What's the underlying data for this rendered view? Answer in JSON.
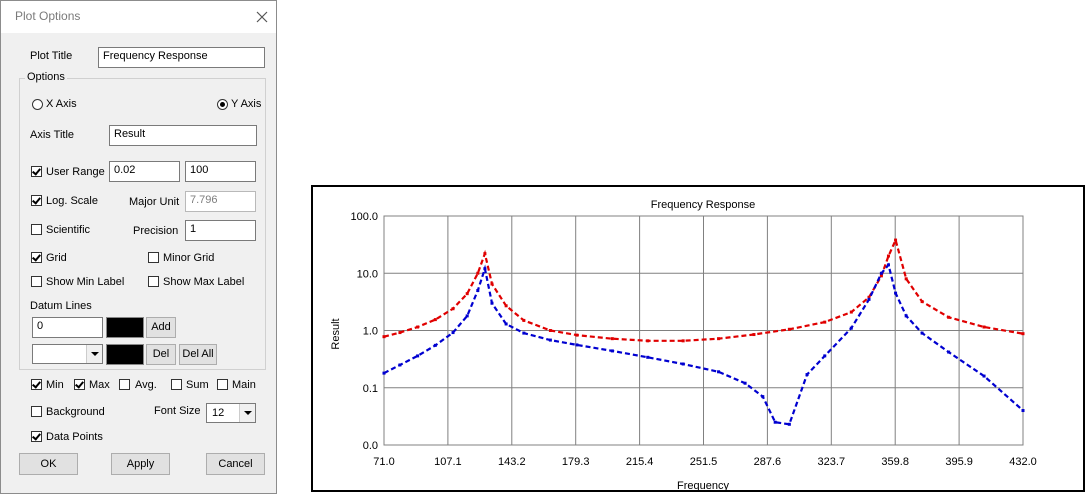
{
  "dialog": {
    "title": "Plot Options",
    "plot_title_label": "Plot Title",
    "plot_title_value": "Frequency Response",
    "options_group_label": "Options",
    "x_axis_label": "X Axis",
    "y_axis_label": "Y Axis",
    "selected_axis": "Y Axis",
    "axis_title_label": "Axis Title",
    "axis_title_value": "Result",
    "user_range_label": "User Range",
    "user_range_checked": true,
    "range_min": "0.02",
    "range_max": "100",
    "log_scale_label": "Log. Scale",
    "log_scale_checked": true,
    "major_unit_label": "Major Unit",
    "major_unit_value": "7.796",
    "scientific_label": "Scientific",
    "scientific_checked": false,
    "precision_label": "Precision",
    "precision_value": "1",
    "grid_label": "Grid",
    "grid_checked": true,
    "minor_grid_label": "Minor Grid",
    "minor_grid_checked": false,
    "show_min_label": "Show Min Label",
    "show_min_checked": false,
    "show_max_label": "Show Max Label",
    "show_max_checked": false,
    "datum_lines_label": "Datum Lines",
    "datum_value": "0",
    "datum_color": "#000000",
    "add_button": "Add",
    "del_button": "Del",
    "del_all_button": "Del All",
    "min_label": "Min",
    "min_checked": true,
    "max_label": "Max",
    "max_checked": true,
    "avg_label": "Avg.",
    "avg_checked": false,
    "sum_label": "Sum",
    "sum_checked": false,
    "main_label": "Main",
    "main_checked": false,
    "background_label": "Background",
    "background_checked": false,
    "font_size_label": "Font Size",
    "font_size_value": "12",
    "data_points_label": "Data Points",
    "data_points_checked": true,
    "ok_button": "OK",
    "apply_button": "Apply",
    "cancel_button": "Cancel"
  },
  "chart_data": {
    "type": "line",
    "title": "Frequency Response",
    "xlabel": "Frequency",
    "ylabel": "Result",
    "xlim": [
      71.0,
      432.0
    ],
    "x_ticks": [
      "71.0",
      "107.1",
      "143.2",
      "179.3",
      "215.4",
      "251.5",
      "287.6",
      "323.7",
      "359.8",
      "395.9",
      "432.0"
    ],
    "y_scale": "log",
    "y_ticks": [
      "0.0",
      "0.1",
      "1.0",
      "10.0",
      "100.0"
    ],
    "grid": true,
    "line_style": "dashed",
    "series": [
      {
        "color": "#e00000",
        "x": [
          71,
          80,
          90,
          100,
          110,
          118,
          124,
          128,
          132,
          140,
          150,
          165,
          180,
          200,
          220,
          240,
          260,
          280,
          300,
          320,
          335,
          345,
          352,
          356,
          360,
          366,
          375,
          390,
          410,
          432
        ],
        "y": [
          0.78,
          0.92,
          1.15,
          1.55,
          2.4,
          4.4,
          10,
          22,
          6.5,
          2.7,
          1.5,
          1.0,
          0.83,
          0.72,
          0.66,
          0.66,
          0.72,
          0.85,
          1.05,
          1.4,
          2.1,
          3.8,
          9,
          20,
          38,
          8,
          3.2,
          1.7,
          1.15,
          0.88
        ]
      },
      {
        "color": "#0000d0",
        "x": [
          71,
          80,
          90,
          100,
          110,
          118,
          124,
          128,
          132,
          140,
          150,
          165,
          180,
          200,
          220,
          240,
          260,
          275,
          285,
          292,
          300,
          310,
          320,
          335,
          345,
          352,
          356,
          360,
          366,
          375,
          390,
          410,
          432
        ],
        "y": [
          0.18,
          0.25,
          0.36,
          0.55,
          0.92,
          1.8,
          5,
          12,
          3,
          1.3,
          0.9,
          0.68,
          0.56,
          0.44,
          0.34,
          0.26,
          0.19,
          0.12,
          0.07,
          0.025,
          0.023,
          0.17,
          0.36,
          1.1,
          3.5,
          10,
          14,
          4.5,
          1.8,
          0.9,
          0.42,
          0.16,
          0.04
        ]
      }
    ]
  }
}
